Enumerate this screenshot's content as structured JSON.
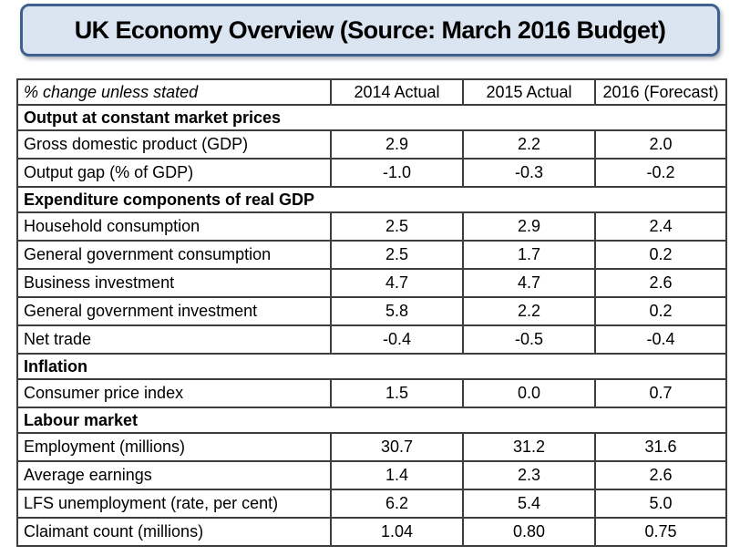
{
  "title": "UK Economy Overview (Source: March 2016 Budget)",
  "colors": {
    "title_bg": "#dbe4f1",
    "title_border": "#3f618f",
    "table_border": "#3d3d3d"
  },
  "chart_data": {
    "type": "table",
    "title": "UK Economy Overview (Source: March 2016 Budget)",
    "columns": [
      "% change unless stated",
      "2014 Actual",
      "2015 Actual",
      "2016 (Forecast)"
    ],
    "sections": [
      {
        "label": "Output at constant market prices",
        "rows": [
          {
            "label": "Gross domestic product (GDP)",
            "values": [
              "2.9",
              "2.2",
              "2.0"
            ]
          },
          {
            "label": "Output gap (% of GDP)",
            "values": [
              "-1.0",
              "-0.3",
              "-0.2"
            ]
          }
        ]
      },
      {
        "label": "Expenditure components of real GDP",
        "rows": [
          {
            "label": "Household consumption",
            "values": [
              "2.5",
              "2.9",
              "2.4"
            ]
          },
          {
            "label": "General government consumption",
            "values": [
              "2.5",
              "1.7",
              "0.2"
            ]
          },
          {
            "label": "Business investment",
            "values": [
              "4.7",
              "4.7",
              "2.6"
            ]
          },
          {
            "label": "General government investment",
            "values": [
              "5.8",
              "2.2",
              "0.2"
            ]
          },
          {
            "label": "Net trade",
            "values": [
              "-0.4",
              "-0.5",
              "-0.4"
            ]
          }
        ]
      },
      {
        "label": "Inflation",
        "rows": [
          {
            "label": "Consumer price index",
            "values": [
              "1.5",
              "0.0",
              "0.7"
            ]
          }
        ]
      },
      {
        "label": "Labour market",
        "rows": [
          {
            "label": "Employment (millions)",
            "values": [
              "30.7",
              "31.2",
              "31.6"
            ]
          },
          {
            "label": "Average earnings",
            "values": [
              "1.4",
              "2.3",
              "2.6"
            ]
          },
          {
            "label": "LFS unemployment (rate, per cent)",
            "values": [
              "6.2",
              "5.4",
              "5.0"
            ]
          },
          {
            "label": "Claimant count (millions)",
            "values": [
              "1.04",
              "0.80",
              "0.75"
            ]
          }
        ]
      }
    ]
  }
}
